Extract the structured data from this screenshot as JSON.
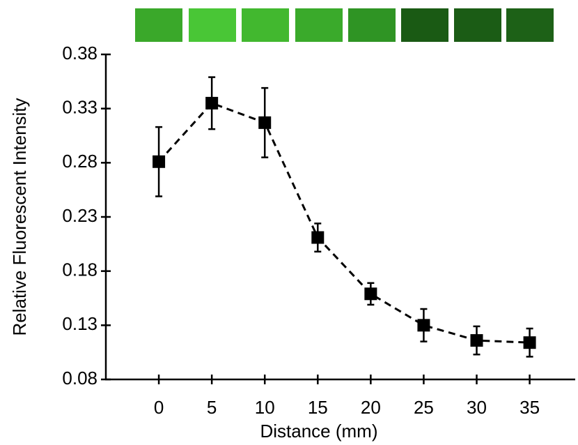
{
  "chart_data": {
    "type": "scatter",
    "xlabel": "Distance (mm)",
    "ylabel": "Relative Fluorescent Intensity",
    "x": [
      0,
      5,
      10,
      15,
      20,
      25,
      30,
      35
    ],
    "values": [
      0.281,
      0.335,
      0.317,
      0.211,
      0.159,
      0.13,
      0.116,
      0.114
    ],
    "errors": [
      0.032,
      0.024,
      0.032,
      0.013,
      0.01,
      0.015,
      0.013,
      0.013
    ],
    "color": "#000000",
    "xlim": [
      -5,
      39.3
    ],
    "xticks": [
      0,
      5,
      10,
      15,
      20,
      25,
      30,
      35
    ],
    "ylim": [
      0.08,
      0.38
    ],
    "yticks": [
      0.08,
      0.13,
      0.18,
      0.23,
      0.28,
      0.33,
      0.38
    ]
  }
}
